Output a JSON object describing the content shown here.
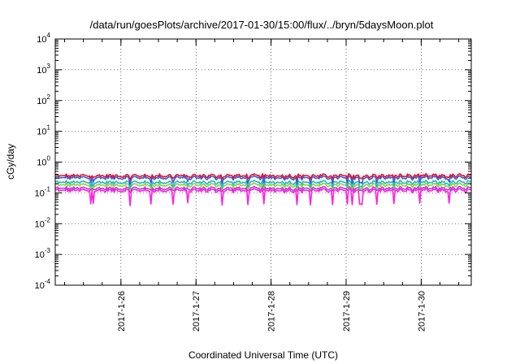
{
  "chart_data": {
    "type": "line",
    "title": "/data/run/goesPlots/archive/2017-01-30/15:00/flux/../bryn/5daysMoon.plot",
    "xlabel": "Coordinated Universal Time (UTC)",
    "ylabel": "cGy/day",
    "yscale": "log",
    "ylim": [
      0.0001,
      10000
    ],
    "yticks": [
      {
        "base": "10",
        "exp": "-4",
        "value": 0.0001
      },
      {
        "base": "10",
        "exp": "-3",
        "value": 0.001
      },
      {
        "base": "10",
        "exp": "-2",
        "value": 0.01
      },
      {
        "base": "10",
        "exp": "-1",
        "value": 0.1
      },
      {
        "base": "10",
        "exp": "0",
        "value": 1
      },
      {
        "base": "10",
        "exp": "1",
        "value": 10
      },
      {
        "base": "10",
        "exp": "2",
        "value": 100
      },
      {
        "base": "10",
        "exp": "3",
        "value": 1000
      },
      {
        "base": "10",
        "exp": "4",
        "value": 10000
      }
    ],
    "xlim": [
      "2017-01-25 03:00",
      "2017-01-30 16:00"
    ],
    "xticks": [
      "2017-1-26",
      "2017-1-27",
      "2017-1-28",
      "2017-1-29",
      "2017-1-30"
    ],
    "grid": true,
    "series": [
      {
        "color": "#e8112d",
        "level": 0.36,
        "dip": 0.75
      },
      {
        "color": "#3a59d6",
        "level": 0.31,
        "dip": 0.55
      },
      {
        "color": "#21b8c8",
        "level": 0.22,
        "dip": 0.6
      },
      {
        "color": "#8bd236",
        "level": 0.18,
        "dip": 0.65
      },
      {
        "color": "#c03ad8",
        "level": 0.14,
        "dip": 0.8
      },
      {
        "color": "#ff1fe0",
        "level": 0.12,
        "dip": 0.08
      }
    ]
  }
}
